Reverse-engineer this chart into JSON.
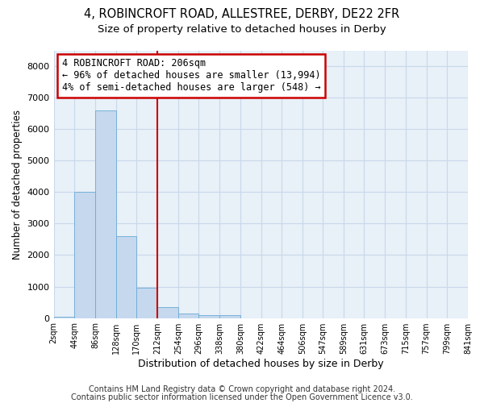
{
  "title1": "4, ROBINCROFT ROAD, ALLESTREE, DERBY, DE22 2FR",
  "title2": "Size of property relative to detached houses in Derby",
  "xlabel": "Distribution of detached houses by size in Derby",
  "ylabel": "Number of detached properties",
  "footer1": "Contains HM Land Registry data © Crown copyright and database right 2024.",
  "footer2": "Contains public sector information licensed under the Open Government Licence v3.0.",
  "bar_left_edges": [
    2,
    44,
    86,
    128,
    170,
    212,
    254,
    296,
    338,
    380,
    422,
    464,
    506,
    547,
    589,
    631,
    673,
    715,
    757,
    799
  ],
  "bar_widths": [
    42,
    42,
    42,
    42,
    42,
    42,
    42,
    42,
    42,
    42,
    42,
    42,
    41,
    42,
    42,
    42,
    42,
    42,
    42,
    42
  ],
  "bar_heights": [
    50,
    4000,
    6600,
    2600,
    950,
    350,
    150,
    100,
    100,
    0,
    0,
    0,
    0,
    0,
    0,
    0,
    0,
    0,
    0,
    0
  ],
  "bar_color": "#c5d8ee",
  "bar_edge_color": "#6aaad4",
  "grid_color": "#c8d8ea",
  "bg_color": "#e8f0f8",
  "vline_x": 212,
  "vline_color": "#cc0000",
  "vline_lw": 1.5,
  "annotation_line1": "4 ROBINCROFT ROAD: 206sqm",
  "annotation_line2": "← 96% of detached houses are smaller (13,994)",
  "annotation_line3": "4% of semi-detached houses are larger (548) →",
  "annotation_box_color": "#cc0000",
  "annotation_text_color": "#000000",
  "annotation_fontsize": 8.5,
  "ylim": [
    0,
    8500
  ],
  "xlim": [
    2,
    841
  ],
  "xtick_labels": [
    "2sqm",
    "44sqm",
    "86sqm",
    "128sqm",
    "170sqm",
    "212sqm",
    "254sqm",
    "296sqm",
    "338sqm",
    "380sqm",
    "422sqm",
    "464sqm",
    "506sqm",
    "547sqm",
    "589sqm",
    "631sqm",
    "673sqm",
    "715sqm",
    "757sqm",
    "799sqm",
    "841sqm"
  ],
  "xtick_positions": [
    2,
    44,
    86,
    128,
    170,
    212,
    254,
    296,
    338,
    380,
    422,
    464,
    506,
    547,
    589,
    631,
    673,
    715,
    757,
    799,
    841
  ],
  "title1_fontsize": 10.5,
  "title2_fontsize": 9.5,
  "xlabel_fontsize": 9,
  "ylabel_fontsize": 8.5,
  "footer_fontsize": 7,
  "ytick_fontsize": 8,
  "xtick_fontsize": 7
}
